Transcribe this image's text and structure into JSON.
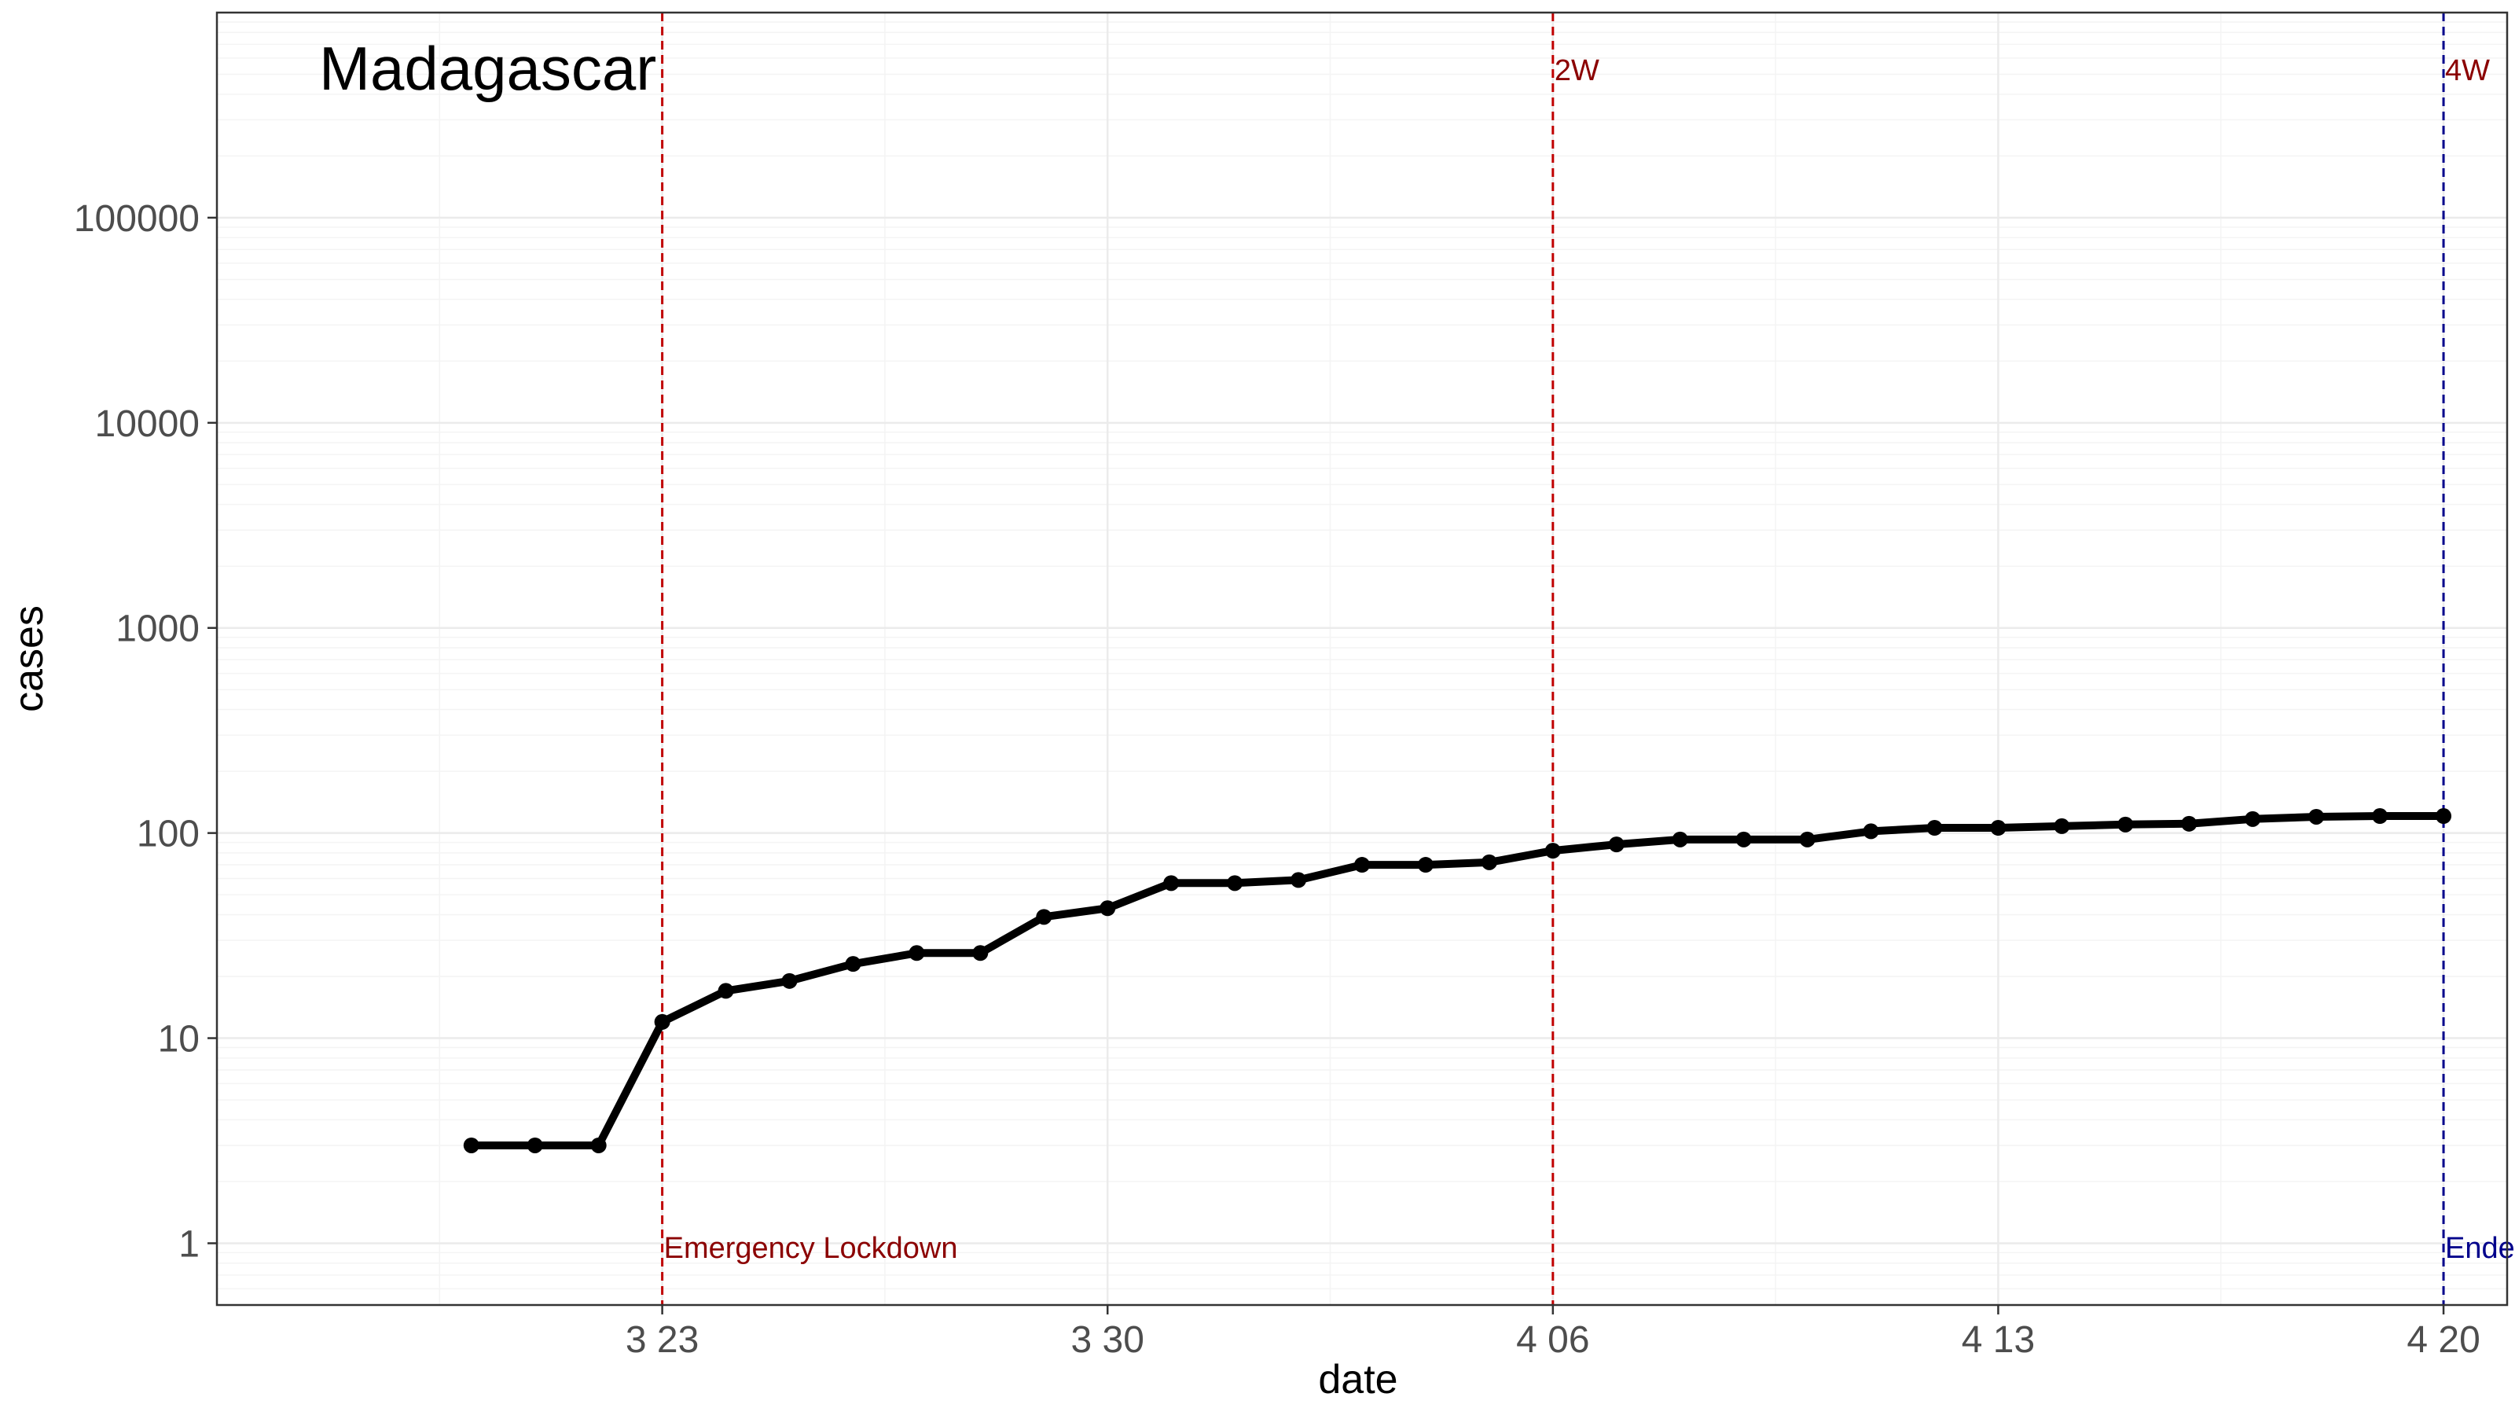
{
  "chart_data": {
    "type": "line",
    "title": "Madagascar",
    "xlabel": "date",
    "ylabel": "cases",
    "y_scale": "log10",
    "ylim": [
      0.5,
      1000000
    ],
    "xlim": [
      "2020-03-16",
      "2020-04-21"
    ],
    "grid": true,
    "x_ticks": [
      {
        "date": "2020-03-23",
        "label": "3 23"
      },
      {
        "date": "2020-03-30",
        "label": "3 30"
      },
      {
        "date": "2020-04-06",
        "label": "4 06"
      },
      {
        "date": "2020-04-13",
        "label": "4 13"
      },
      {
        "date": "2020-04-20",
        "label": "4 20"
      }
    ],
    "y_ticks": [
      {
        "value": 1,
        "label": "1"
      },
      {
        "value": 10,
        "label": "10"
      },
      {
        "value": 100,
        "label": "100"
      },
      {
        "value": 1000,
        "label": "1000"
      },
      {
        "value": 10000,
        "label": "10000"
      },
      {
        "value": 100000,
        "label": "100000"
      }
    ],
    "series": [
      {
        "color": "#000000",
        "points": [
          {
            "x": "2020-03-20",
            "y": 3
          },
          {
            "x": "2020-03-21",
            "y": 3
          },
          {
            "x": "2020-03-22",
            "y": 3
          },
          {
            "x": "2020-03-23",
            "y": 12
          },
          {
            "x": "2020-03-24",
            "y": 17
          },
          {
            "x": "2020-03-25",
            "y": 19
          },
          {
            "x": "2020-03-26",
            "y": 23
          },
          {
            "x": "2020-03-27",
            "y": 26
          },
          {
            "x": "2020-03-28",
            "y": 26
          },
          {
            "x": "2020-03-29",
            "y": 39
          },
          {
            "x": "2020-03-30",
            "y": 43
          },
          {
            "x": "2020-03-31",
            "y": 57
          },
          {
            "x": "2020-04-01",
            "y": 57
          },
          {
            "x": "2020-04-02",
            "y": 59
          },
          {
            "x": "2020-04-03",
            "y": 70
          },
          {
            "x": "2020-04-04",
            "y": 70
          },
          {
            "x": "2020-04-05",
            "y": 72
          },
          {
            "x": "2020-04-06",
            "y": 82
          },
          {
            "x": "2020-04-07",
            "y": 88
          },
          {
            "x": "2020-04-08",
            "y": 93
          },
          {
            "x": "2020-04-09",
            "y": 93
          },
          {
            "x": "2020-04-10",
            "y": 93
          },
          {
            "x": "2020-04-11",
            "y": 102
          },
          {
            "x": "2020-04-12",
            "y": 106
          },
          {
            "x": "2020-04-13",
            "y": 106
          },
          {
            "x": "2020-04-14",
            "y": 108
          },
          {
            "x": "2020-04-15",
            "y": 110
          },
          {
            "x": "2020-04-16",
            "y": 111
          },
          {
            "x": "2020-04-17",
            "y": 117
          },
          {
            "x": "2020-04-18",
            "y": 120
          },
          {
            "x": "2020-04-19",
            "y": 121
          },
          {
            "x": "2020-04-20",
            "y": 121
          }
        ]
      }
    ],
    "annotations": [
      {
        "date": "2020-03-23",
        "label": "Emergency Lockdown",
        "color": "#8b0000",
        "line_color": "#c00000",
        "label_position": "bottom"
      },
      {
        "date": "2020-04-06",
        "label": "2W",
        "color": "#8b0000",
        "line_color": "#c00000",
        "label_position": "top"
      },
      {
        "date": "2020-04-20",
        "label": "4W",
        "color": "#8b0000",
        "line_color": "#00008b",
        "label_position": "top"
      },
      {
        "date": "2020-04-20",
        "label": "Ended",
        "color": "#00008b",
        "line_color": "#00008b",
        "label_position": "bottom"
      }
    ],
    "colors": {
      "panel_border": "#333333",
      "grid_major": "#ebebeb",
      "grid_minor": "#f4f4f4",
      "axis_text": "#4d4d4d",
      "axis_title": "#000000"
    }
  }
}
